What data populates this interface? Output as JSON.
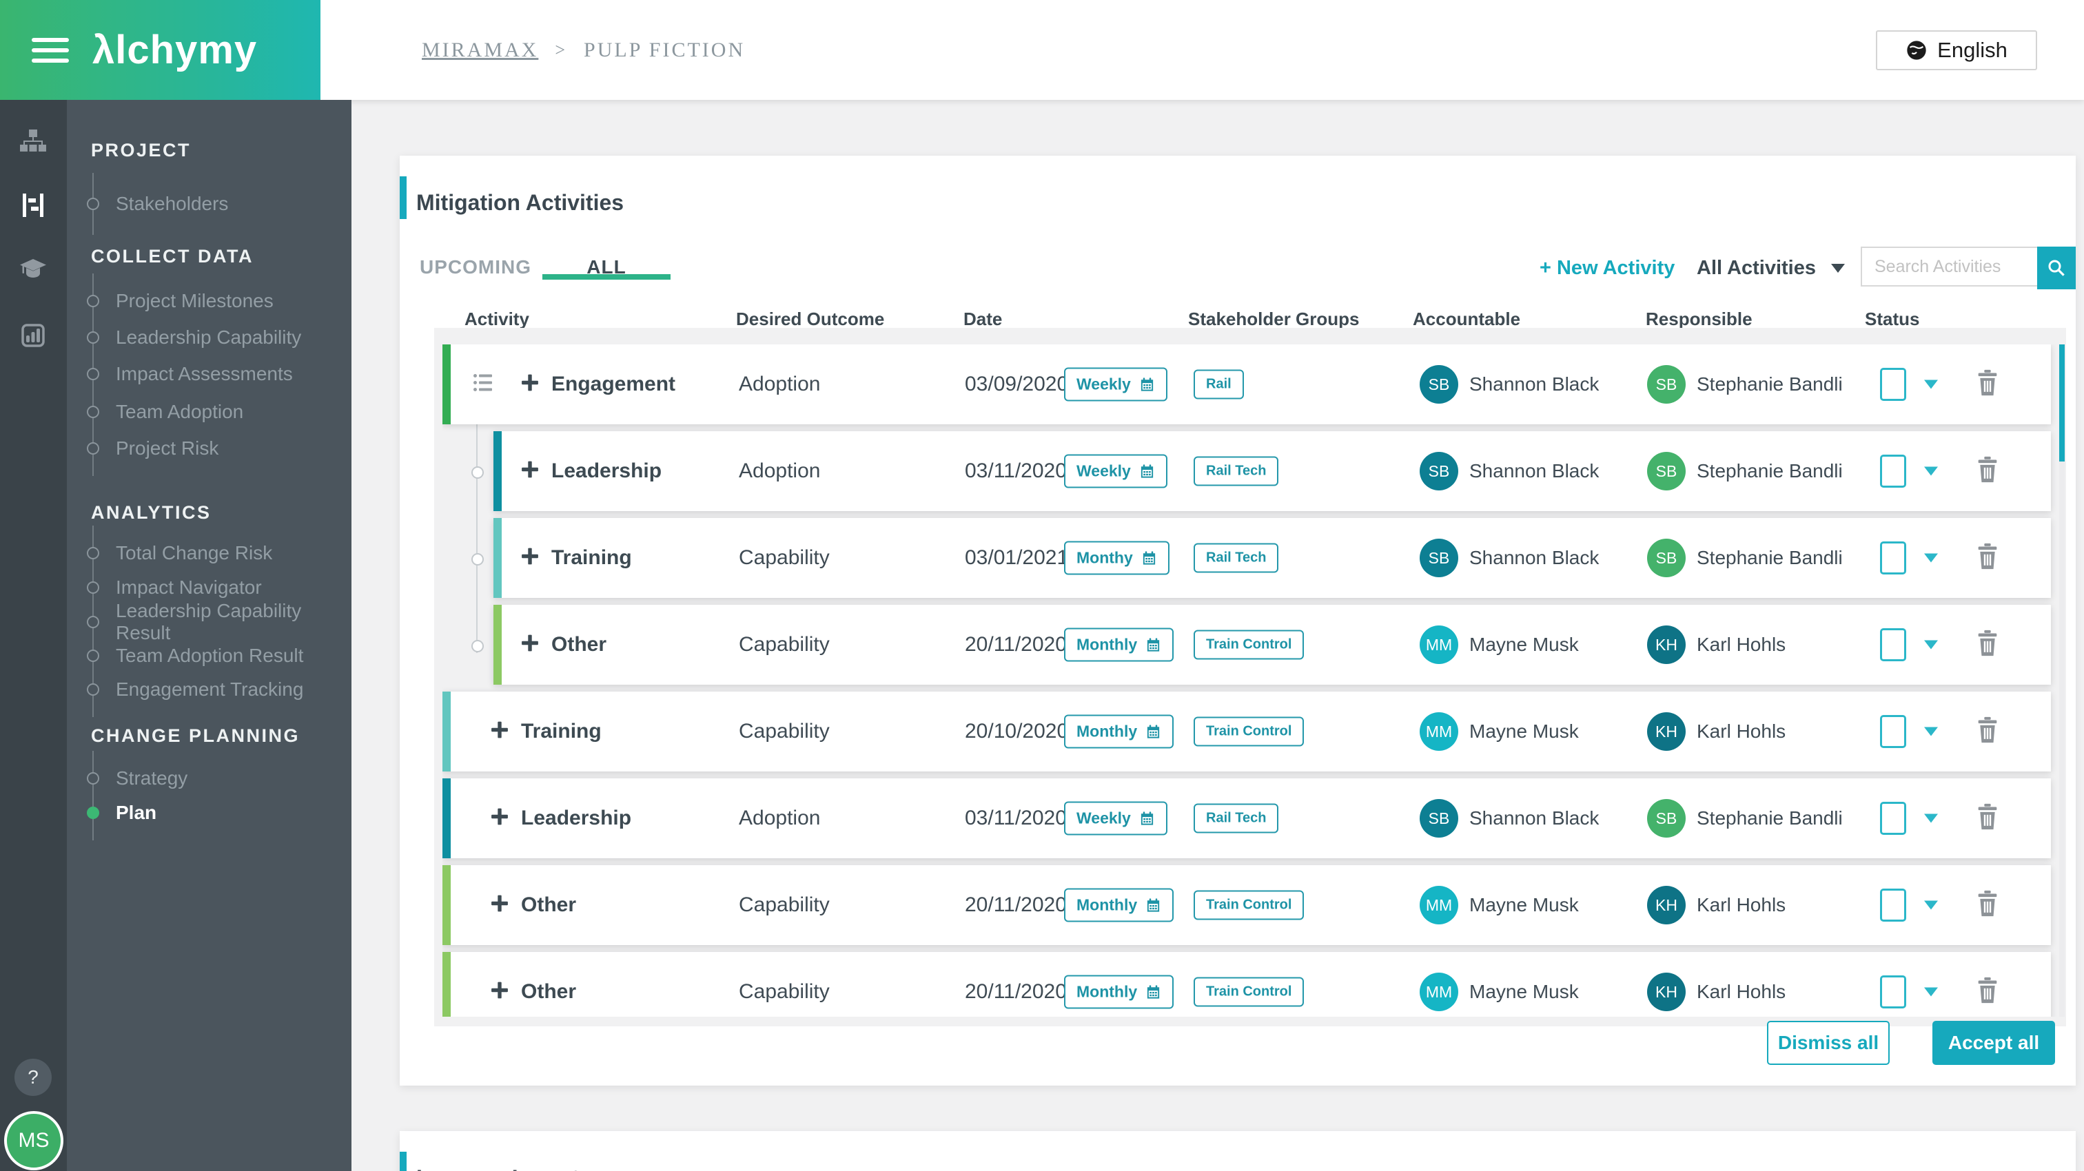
{
  "header": {
    "logo": "λlchymy",
    "breadcrumb": {
      "company": "MIRAMAX",
      "separator": ">",
      "project": "PULP FICTION"
    },
    "language": "English"
  },
  "rail": {
    "icons": [
      "org-chart",
      "plan-board",
      "learning",
      "reports"
    ],
    "help_label": "?"
  },
  "user": {
    "initials": "MS"
  },
  "sidebar": {
    "sections": [
      {
        "title": "PROJECT",
        "items": [
          {
            "label": "Stakeholders",
            "active": false
          }
        ]
      },
      {
        "title": "COLLECT DATA",
        "items": [
          {
            "label": "Project Milestones",
            "active": false
          },
          {
            "label": "Leadership Capability",
            "active": false
          },
          {
            "label": "Impact Assessments",
            "active": false
          },
          {
            "label": "Team Adoption",
            "active": false
          },
          {
            "label": "Project Risk",
            "active": false
          }
        ]
      },
      {
        "title": "ANALYTICS",
        "items": [
          {
            "label": "Total Change Risk",
            "active": false
          },
          {
            "label": "Impact Navigator",
            "active": false
          },
          {
            "label": "Leadership Capability Result",
            "active": false
          },
          {
            "label": "Team Adoption Result",
            "active": false
          },
          {
            "label": "Engagement Tracking",
            "active": false
          }
        ]
      },
      {
        "title": "CHANGE PLANNING",
        "items": [
          {
            "label": "Strategy",
            "active": false
          },
          {
            "label": "Plan",
            "active": true
          }
        ]
      }
    ]
  },
  "card": {
    "title": "Mitigation Activities",
    "tabs": [
      {
        "label": "UPCOMING",
        "active": false
      },
      {
        "label": "ALL",
        "active": true
      }
    ],
    "new_activity_label": "+ New Activity",
    "filter_label": "All Activities",
    "search_placeholder": "Search Activities",
    "columns": [
      "Activity",
      "Desired Outcome",
      "Date",
      "Stakeholder Groups",
      "Accountable",
      "Responsible",
      "Status"
    ],
    "rows": [
      {
        "activity": "Engagement",
        "outcome": "Adoption",
        "date": "03/09/2020",
        "frequency": "Weekly",
        "group": "Rail",
        "accountable": {
          "initials": "SB",
          "name": "Shannon Black",
          "color": "#0d7f93"
        },
        "responsible": {
          "initials": "SB",
          "name": "Stephanie Bandli",
          "color": "#44b26b"
        },
        "accent": "#33ad53",
        "indent": false,
        "drag": true
      },
      {
        "activity": "Leadership",
        "outcome": "Adoption",
        "date": "03/11/2020",
        "frequency": "Weekly",
        "group": "Rail Tech",
        "accountable": {
          "initials": "SB",
          "name": "Shannon Black",
          "color": "#0d7f93"
        },
        "responsible": {
          "initials": "SB",
          "name": "Stephanie Bandli",
          "color": "#44b26b"
        },
        "accent": "#0e8fa0",
        "indent": true,
        "drag": false
      },
      {
        "activity": "Training",
        "outcome": "Capability",
        "date": "03/01/2021",
        "frequency": "Monthy",
        "group": "Rail Tech",
        "accountable": {
          "initials": "SB",
          "name": "Shannon Black",
          "color": "#0d7f93"
        },
        "responsible": {
          "initials": "SB",
          "name": "Stephanie Bandli",
          "color": "#44b26b"
        },
        "accent": "#62c6bf",
        "indent": true,
        "drag": false
      },
      {
        "activity": "Other",
        "outcome": "Capability",
        "date": "20/11/2020",
        "frequency": "Monthly",
        "group": "Train Control",
        "accountable": {
          "initials": "MM",
          "name": "Mayne Musk",
          "color": "#15b5c5"
        },
        "responsible": {
          "initials": "KH",
          "name": "Karl Hohls",
          "color": "#0e7386"
        },
        "accent": "#8cc963",
        "indent": true,
        "drag": false
      },
      {
        "activity": "Training",
        "outcome": "Capability",
        "date": "20/10/2020",
        "frequency": "Monthly",
        "group": "Train Control",
        "accountable": {
          "initials": "MM",
          "name": "Mayne Musk",
          "color": "#15b5c5"
        },
        "responsible": {
          "initials": "KH",
          "name": "Karl Hohls",
          "color": "#0e7386"
        },
        "accent": "#62c6bf",
        "indent": false,
        "drag": false
      },
      {
        "activity": "Leadership",
        "outcome": "Adoption",
        "date": "03/11/2020",
        "frequency": "Weekly",
        "group": "Rail Tech",
        "accountable": {
          "initials": "SB",
          "name": "Shannon Black",
          "color": "#0d7f93"
        },
        "responsible": {
          "initials": "SB",
          "name": "Stephanie Bandli",
          "color": "#44b26b"
        },
        "accent": "#0e8fa0",
        "indent": false,
        "drag": false
      },
      {
        "activity": "Other",
        "outcome": "Capability",
        "date": "20/11/2020",
        "frequency": "Monthly",
        "group": "Train Control",
        "accountable": {
          "initials": "MM",
          "name": "Mayne Musk",
          "color": "#15b5c5"
        },
        "responsible": {
          "initials": "KH",
          "name": "Karl Hohls",
          "color": "#0e7386"
        },
        "accent": "#8cc963",
        "indent": false,
        "drag": false
      },
      {
        "activity": "Other",
        "outcome": "Capability",
        "date": "20/11/2020",
        "frequency": "Monthly",
        "group": "Train Control",
        "accountable": {
          "initials": "MM",
          "name": "Mayne Musk",
          "color": "#15b5c5"
        },
        "responsible": {
          "initials": "KH",
          "name": "Karl Hohls",
          "color": "#0e7386"
        },
        "accent": "#8cc963",
        "indent": false,
        "drag": false
      }
    ],
    "dismiss_label": "Dismiss all",
    "accept_label": "Accept all"
  },
  "lessons": {
    "title": "Lessons Learnt"
  },
  "colors": {
    "brand_gradient_start": "#3ab56f",
    "brand_gradient_end": "#1fb7b0",
    "teal_accent": "#16a9bd",
    "tab_underline": "#2db389",
    "sidebar_rail": "#3a4349",
    "sidebar_panel": "#4b555d",
    "active_dot": "#3cb874",
    "text_dark": "#3d4a52"
  }
}
